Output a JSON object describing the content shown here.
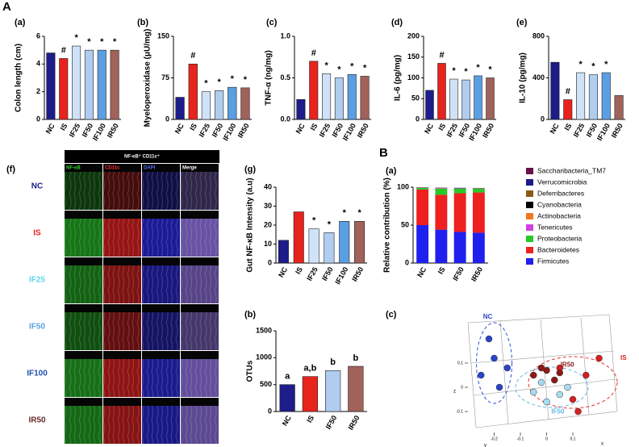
{
  "labels": [
    "A",
    "B"
  ],
  "image_panel": {
    "panel": "(f)",
    "header": "NF-κB⁺ CD11c⁺",
    "columns": [
      "NF-κB",
      "CD11c",
      "DAPI",
      "Merge"
    ],
    "rows": [
      "NC",
      "IS",
      "IF25",
      "IF50",
      "IF100",
      "IR50"
    ]
  },
  "chart_data": [
    {
      "type": "bar",
      "panel": "(a)",
      "y_label": "Colon length (cm)",
      "categories": [
        "NC",
        "IS",
        "IF25",
        "IF50",
        "IF100",
        "IR50"
      ],
      "values": [
        4.8,
        4.4,
        5.3,
        5.0,
        5.0,
        5.0
      ],
      "colors": [
        "#1c1c8a",
        "#e8231c",
        "#cfe2f7",
        "#b0cdef",
        "#5b9fe3",
        "#a0625a"
      ],
      "annotations": [
        null,
        "#",
        "*",
        "*",
        "*",
        "*"
      ],
      "ylim": [
        0,
        6
      ],
      "yticks": [
        0,
        2,
        4,
        6
      ]
    },
    {
      "type": "bar",
      "panel": "(b)",
      "y_label": "Myeloperoxidase (μU/mg)",
      "categories": [
        "NC",
        "IS",
        "IF25",
        "IF50",
        "IF100",
        "IR50"
      ],
      "values": [
        40,
        100,
        50,
        52,
        58,
        57
      ],
      "colors": [
        "#1c1c8a",
        "#e8231c",
        "#cfe2f7",
        "#b0cdef",
        "#5b9fe3",
        "#a0625a"
      ],
      "annotations": [
        null,
        "#",
        "*",
        "*",
        "*",
        "*"
      ],
      "ylim": [
        0,
        150
      ],
      "yticks": [
        0,
        75,
        150
      ]
    },
    {
      "type": "bar",
      "panel": "(c)",
      "y_label": "TNF-α (ng/mg)",
      "categories": [
        "NC",
        "IS",
        "IF25",
        "IF50",
        "IF100",
        "IR50"
      ],
      "values": [
        0.24,
        0.7,
        0.55,
        0.5,
        0.54,
        0.52
      ],
      "colors": [
        "#1c1c8a",
        "#e8231c",
        "#cfe2f7",
        "#b0cdef",
        "#5b9fe3",
        "#a0625a"
      ],
      "annotations": [
        null,
        "#",
        "*",
        "*",
        "*",
        "*"
      ],
      "ylim": [
        0,
        1
      ],
      "yticks": [
        {
          "value": 0,
          "label": "0.0"
        },
        {
          "value": 0.5,
          "label": "0.5"
        },
        {
          "value": 1,
          "label": "1.0"
        }
      ]
    },
    {
      "type": "bar",
      "panel": "(d)",
      "y_label": "IL-6 (pg/mg)",
      "categories": [
        "NC",
        "IS",
        "IF25",
        "IF50",
        "IF100",
        "IR50"
      ],
      "values": [
        70,
        135,
        97,
        95,
        105,
        100
      ],
      "colors": [
        "#1c1c8a",
        "#e8231c",
        "#cfe2f7",
        "#b0cdef",
        "#5b9fe3",
        "#a0625a"
      ],
      "annotations": [
        null,
        "#",
        "*",
        "*",
        "*",
        "*"
      ],
      "ylim": [
        0,
        200
      ],
      "yticks": [
        0,
        50,
        100,
        150,
        200
      ]
    },
    {
      "type": "bar",
      "panel": "(e)",
      "y_label": "IL-10 (pg/mg)",
      "categories": [
        "NC",
        "IS",
        "IF25",
        "IF50",
        "IF100",
        "IR50"
      ],
      "values": [
        550,
        190,
        450,
        430,
        450,
        230
      ],
      "colors": [
        "#1c1c8a",
        "#e8231c",
        "#cfe2f7",
        "#b0cdef",
        "#5b9fe3",
        "#a0625a"
      ],
      "annotations": [
        null,
        "#",
        "*",
        "*",
        "*",
        null
      ],
      "ylim": [
        0,
        800
      ],
      "yticks": [
        0,
        400,
        800
      ]
    },
    {
      "type": "bar",
      "panel": "(g)",
      "y_label": "Gut NF-κB Intensity (a.u)",
      "categories": [
        "NC",
        "IS",
        "IF25",
        "IF50",
        "IF100",
        "IR50"
      ],
      "values": [
        12,
        27,
        18,
        16,
        22,
        22
      ],
      "colors": [
        "#1c1c8a",
        "#e8231c",
        "#cfe2f7",
        "#b0cdef",
        "#5b9fe3",
        "#a0625a"
      ],
      "annotations": [
        null,
        null,
        "*",
        "*",
        "*",
        "*"
      ],
      "ylim": [
        0,
        40
      ],
      "yticks": [
        0,
        10,
        20,
        30,
        40
      ]
    },
    {
      "type": "stacked_bar",
      "panel": "(a)",
      "y_label": "Relative contribution (%)",
      "categories": [
        "NC",
        "IS",
        "IF50",
        "IR50"
      ],
      "ylim": [
        0,
        100
      ],
      "yticks": [
        0,
        50,
        100
      ],
      "series": [
        {
          "name": "Saccharibacteria_TM7",
          "color": "#6b0f4a",
          "values": [
            0.2,
            0.2,
            0.2,
            0.2
          ]
        },
        {
          "name": "Verrucomicrobia",
          "color": "#1a1a8a",
          "values": [
            0.3,
            0.3,
            0.5,
            0.3
          ]
        },
        {
          "name": "Deferribacteres",
          "color": "#8b5a14",
          "values": [
            0.1,
            0.3,
            0.2,
            0.2
          ]
        },
        {
          "name": "Cyanobacteria",
          "color": "#000000",
          "values": [
            0.1,
            0.2,
            0.1,
            0.1
          ]
        },
        {
          "name": "Actinobacteria",
          "color": "#f07820",
          "values": [
            0.2,
            0.2,
            0.1,
            0.1
          ]
        },
        {
          "name": "Tenericutes",
          "color": "#d040e0",
          "values": [
            0.1,
            0.3,
            0.1,
            0.1
          ]
        },
        {
          "name": "Proteobacteria",
          "color": "#28c828",
          "values": [
            2,
            8,
            6,
            5
          ]
        },
        {
          "name": "Bacteroidetes",
          "color": "#ee2020",
          "values": [
            47,
            46,
            51,
            53
          ]
        },
        {
          "name": "Firmicutes",
          "color": "#2020ee",
          "values": [
            50,
            44,
            41,
            40
          ]
        }
      ]
    },
    {
      "type": "bar",
      "panel": "(b)",
      "y_label": "OTUs",
      "categories": [
        "NC",
        "IS",
        "IF50",
        "IR50"
      ],
      "values": [
        500,
        650,
        760,
        840
      ],
      "colors": [
        "#1c1c8a",
        "#e8231c",
        "#b0cdef",
        "#a0625a"
      ],
      "annotations": [
        "a",
        "a,b",
        "b",
        "b"
      ],
      "ylim": [
        0,
        1500
      ],
      "yticks": [
        0,
        500,
        1000,
        1500
      ]
    },
    {
      "type": "scatter",
      "panel": "(c)",
      "x_label": "x",
      "y_label": "y",
      "z_label": "z",
      "xlim": [
        -0.3,
        0.3
      ],
      "ylim": [
        -0.2,
        0.3
      ],
      "xticks": [
        -0.2,
        -0.1,
        0,
        0.1
      ],
      "yticks": [
        -0.1,
        0,
        0.1
      ],
      "series": [
        {
          "name": "NC",
          "color": "#2a44c8",
          "x": [
            -0.22,
            -0.2,
            -0.25,
            -0.18,
            -0.15
          ],
          "values": [
            0.2,
            0.12,
            0.05,
            0.0,
            0.08
          ]
        },
        {
          "name": "IS",
          "color": "#d42020",
          "x": [
            0.15,
            0.2,
            0.1,
            0.05,
            0.12
          ],
          "values": [
            0.05,
            0.12,
            -0.05,
            0.08,
            -0.1
          ]
        },
        {
          "name": "IR50",
          "color": "#8b1a1a",
          "x": [
            -0.05,
            0.0,
            0.03,
            -0.02,
            0.05
          ],
          "values": [
            0.05,
            0.07,
            0.03,
            0.08,
            0.06
          ]
        },
        {
          "name": "IF50",
          "color": "#a6dcf2",
          "x": [
            -0.05,
            0.0,
            0.05,
            -0.02,
            0.08
          ],
          "values": [
            -0.02,
            -0.06,
            -0.03,
            0.02,
            0.0
          ]
        }
      ]
    }
  ]
}
